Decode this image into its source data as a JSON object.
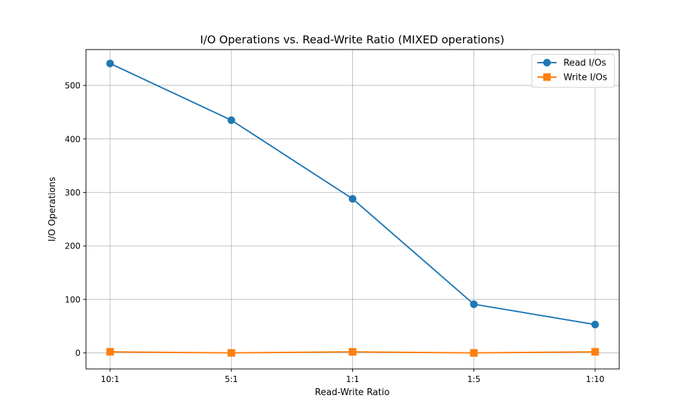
{
  "chart_data": {
    "type": "line",
    "title": "I/O Operations vs. Read-Write Ratio (MIXED operations)",
    "xlabel": "Read-Write Ratio",
    "ylabel": "I/O Operations",
    "categories": [
      "10:1",
      "5:1",
      "1:1",
      "1:5",
      "1:10"
    ],
    "ylim": [
      -30,
      567
    ],
    "yticks": [
      0,
      100,
      200,
      300,
      400,
      500
    ],
    "grid": true,
    "legend_position": "top-right",
    "series": [
      {
        "name": "Read I/Os",
        "values": [
          541,
          435,
          288,
          91,
          53
        ],
        "color": "#1f77b4",
        "marker": "circle"
      },
      {
        "name": "Write I/Os",
        "values": [
          2,
          0,
          2,
          0,
          2
        ],
        "color": "#ff7f0e",
        "marker": "square"
      }
    ]
  }
}
